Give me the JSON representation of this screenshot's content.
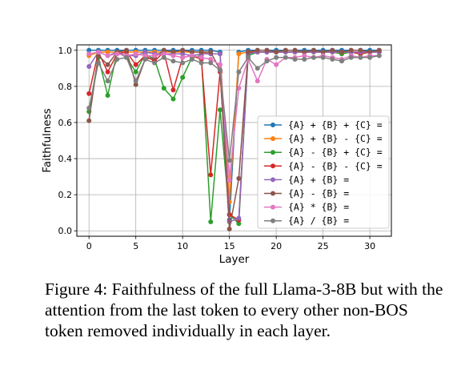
{
  "caption": "Figure 4: Faithfulness of the full Llama-3-8B but with the attention from the last token to every other non-BOS token removed individually in each layer.",
  "chart_data": {
    "type": "line",
    "xlabel": "Layer",
    "ylabel": "Faithfulness",
    "xlim": [
      -1.3,
      32.3
    ],
    "ylim": [
      -0.03,
      1.03
    ],
    "xticks": [
      0,
      5,
      10,
      15,
      20,
      25,
      30
    ],
    "yticks": [
      0.0,
      0.2,
      0.4,
      0.6,
      0.8,
      1.0
    ],
    "ytick_labels": [
      "0.0",
      "0.2",
      "0.4",
      "0.6",
      "0.8",
      "1.0"
    ],
    "grid": true,
    "legend_position": "center-right",
    "x": [
      0,
      1,
      2,
      3,
      4,
      5,
      6,
      7,
      8,
      9,
      10,
      11,
      12,
      13,
      14,
      15,
      16,
      17,
      18,
      19,
      20,
      21,
      22,
      23,
      24,
      25,
      26,
      27,
      28,
      29,
      30,
      31
    ],
    "series": [
      {
        "name": "{A} + {B} + {C} =",
        "color": "#1f77b4",
        "values": [
          1.0,
          1.0,
          1.0,
          1.0,
          1.0,
          1.0,
          1.0,
          1.0,
          1.0,
          1.0,
          1.0,
          1.0,
          1.0,
          1.0,
          0.99,
          0.06,
          0.99,
          1.0,
          1.0,
          1.0,
          1.0,
          1.0,
          1.0,
          1.0,
          1.0,
          1.0,
          1.0,
          1.0,
          1.0,
          1.0,
          1.0,
          1.0
        ]
      },
      {
        "name": "{A} + {B} - {C} =",
        "color": "#ff7f0e",
        "values": [
          0.97,
          0.99,
          0.99,
          0.99,
          0.99,
          0.99,
          0.99,
          0.99,
          0.99,
          0.99,
          0.99,
          0.99,
          0.99,
          0.98,
          0.98,
          0.16,
          0.98,
          0.99,
          0.99,
          0.99,
          0.99,
          0.99,
          0.99,
          0.99,
          0.99,
          0.99,
          0.99,
          0.99,
          0.99,
          0.99,
          0.99,
          0.99
        ]
      },
      {
        "name": "{A} - {B} + {C} =",
        "color": "#2ca02c",
        "values": [
          0.66,
          0.96,
          0.75,
          0.99,
          0.96,
          0.88,
          0.98,
          0.95,
          0.79,
          0.73,
          0.85,
          0.96,
          0.97,
          0.05,
          0.67,
          0.09,
          0.04,
          0.97,
          0.99,
          0.99,
          0.99,
          0.99,
          0.99,
          0.99,
          0.99,
          0.99,
          0.99,
          0.98,
          0.99,
          0.98,
          0.99,
          0.99
        ]
      },
      {
        "name": "{A} - {B} - {C} =",
        "color": "#d62728",
        "values": [
          0.76,
          0.99,
          0.88,
          0.98,
          0.99,
          0.92,
          0.97,
          0.94,
          0.99,
          0.78,
          0.96,
          0.97,
          0.95,
          0.31,
          0.88,
          0.09,
          0.06,
          0.99,
          0.99,
          0.99,
          0.99,
          0.99,
          0.99,
          0.99,
          0.99,
          0.99,
          0.99,
          0.99,
          0.99,
          0.98,
          0.99,
          0.99
        ]
      },
      {
        "name": "{A} + {B} =",
        "color": "#9467bd",
        "values": [
          0.91,
          0.99,
          0.97,
          0.99,
          0.97,
          0.97,
          0.99,
          0.98,
          0.98,
          0.98,
          0.98,
          0.97,
          0.98,
          0.98,
          0.98,
          0.05,
          0.07,
          0.98,
          0.99,
          0.99,
          0.99,
          0.99,
          0.99,
          0.99,
          0.99,
          0.99,
          0.99,
          0.99,
          0.99,
          0.99,
          0.99,
          0.99
        ]
      },
      {
        "name": "{A} - {B} =",
        "color": "#8c564b",
        "values": [
          0.61,
          0.97,
          0.92,
          0.99,
          1.0,
          0.81,
          0.95,
          0.96,
          1.0,
          0.99,
          1.0,
          0.99,
          0.99,
          0.99,
          0.89,
          0.01,
          0.29,
          0.99,
          1.0,
          1.0,
          0.99,
          1.0,
          1.0,
          0.99,
          1.0,
          0.99,
          1.0,
          0.99,
          1.0,
          1.0,
          0.99,
          1.0
        ]
      },
      {
        "name": "{A} * {B} =",
        "color": "#e377c2",
        "values": [
          0.98,
          0.99,
          0.97,
          0.98,
          0.97,
          0.98,
          0.97,
          0.97,
          0.98,
          0.97,
          0.96,
          0.97,
          0.96,
          0.95,
          0.92,
          0.28,
          0.79,
          0.95,
          0.83,
          0.95,
          0.92,
          0.96,
          0.96,
          0.97,
          0.96,
          0.97,
          0.96,
          0.95,
          0.97,
          0.96,
          0.97,
          0.97
        ]
      },
      {
        "name": "{A} / {B} =",
        "color": "#7f7f7f",
        "values": [
          0.68,
          0.93,
          0.83,
          0.95,
          0.96,
          0.83,
          0.95,
          0.93,
          0.96,
          0.94,
          0.93,
          0.95,
          0.93,
          0.93,
          0.89,
          0.39,
          0.88,
          0.96,
          0.9,
          0.94,
          0.96,
          0.96,
          0.95,
          0.95,
          0.96,
          0.96,
          0.95,
          0.94,
          0.96,
          0.96,
          0.96,
          0.97
        ]
      }
    ]
  }
}
